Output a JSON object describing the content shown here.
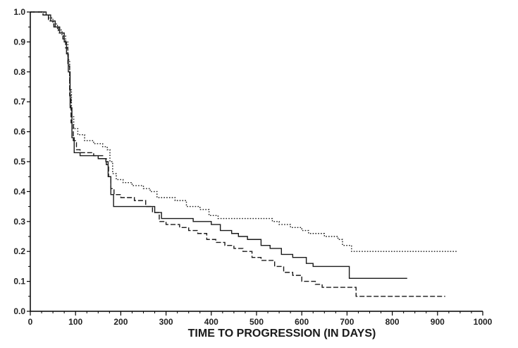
{
  "chart_data": {
    "type": "line",
    "drawstyle": "steps",
    "xlabel": "TIME TO PROGRESSION (IN DAYS)",
    "xlim": [
      0,
      1000
    ],
    "ylim": [
      0,
      1.0
    ],
    "xticks": [
      0,
      100,
      200,
      300,
      400,
      500,
      600,
      700,
      800,
      900,
      1000
    ],
    "xtick_labels": [
      "0",
      "100",
      "200",
      "300",
      "400",
      "500",
      "600",
      "700",
      "800",
      "900",
      "1000"
    ],
    "yticks": [
      0,
      0.1,
      0.2,
      0.3,
      0.4,
      0.5,
      0.6,
      0.7,
      0.8,
      0.9,
      1.0
    ],
    "ytick_labels": [
      "0.0",
      "0.1",
      "0.2",
      "0.3",
      "0.4",
      "0.5",
      "0.6",
      "0.7",
      "0.8",
      "0.9",
      "1.0"
    ],
    "grid": false,
    "legend": "none",
    "series": [
      {
        "line_style": "dotted",
        "x": [
          0,
          20,
          30,
          40,
          50,
          60,
          70,
          78,
          83,
          87,
          91,
          96,
          105,
          120,
          140,
          160,
          170,
          176,
          182,
          190,
          205,
          225,
          250,
          265,
          280,
          320,
          345,
          375,
          395,
          415,
          520,
          535,
          550,
          575,
          600,
          615,
          650,
          680,
          690,
          710,
          942
        ],
        "y": [
          1.0,
          1.0,
          0.99,
          0.98,
          0.96,
          0.94,
          0.92,
          0.9,
          0.84,
          0.74,
          0.65,
          0.61,
          0.59,
          0.57,
          0.56,
          0.55,
          0.54,
          0.5,
          0.46,
          0.44,
          0.43,
          0.42,
          0.41,
          0.4,
          0.38,
          0.37,
          0.35,
          0.34,
          0.32,
          0.31,
          0.31,
          0.3,
          0.29,
          0.28,
          0.27,
          0.26,
          0.25,
          0.24,
          0.22,
          0.2,
          0.2
        ]
      },
      {
        "line_style": "solid",
        "x": [
          0,
          25,
          35,
          45,
          55,
          65,
          75,
          80,
          84,
          88,
          92,
          97,
          110,
          150,
          167,
          172,
          178,
          184,
          265,
          275,
          290,
          330,
          360,
          400,
          420,
          445,
          460,
          480,
          510,
          530,
          555,
          580,
          610,
          625,
          700,
          705,
          833
        ],
        "y": [
          1.0,
          1.0,
          0.99,
          0.97,
          0.95,
          0.93,
          0.9,
          0.86,
          0.8,
          0.68,
          0.58,
          0.53,
          0.52,
          0.51,
          0.5,
          0.45,
          0.39,
          0.35,
          0.35,
          0.33,
          0.31,
          0.31,
          0.3,
          0.29,
          0.27,
          0.26,
          0.25,
          0.24,
          0.22,
          0.21,
          0.19,
          0.18,
          0.16,
          0.15,
          0.15,
          0.11,
          0.11
        ]
      },
      {
        "line_style": "dashed",
        "x": [
          0,
          18,
          28,
          40,
          52,
          62,
          72,
          78,
          83,
          87,
          90,
          95,
          102,
          110,
          140,
          160,
          168,
          173,
          178,
          185,
          200,
          230,
          255,
          270,
          285,
          300,
          330,
          350,
          370,
          390,
          410,
          430,
          450,
          470,
          490,
          510,
          540,
          560,
          580,
          600,
          630,
          645,
          700,
          720,
          917
        ],
        "y": [
          1.0,
          1.0,
          0.99,
          0.97,
          0.95,
          0.93,
          0.91,
          0.88,
          0.82,
          0.72,
          0.63,
          0.57,
          0.54,
          0.53,
          0.52,
          0.51,
          0.49,
          0.45,
          0.41,
          0.39,
          0.38,
          0.37,
          0.35,
          0.33,
          0.3,
          0.29,
          0.28,
          0.27,
          0.26,
          0.24,
          0.23,
          0.22,
          0.21,
          0.2,
          0.18,
          0.17,
          0.15,
          0.13,
          0.12,
          0.1,
          0.09,
          0.08,
          0.08,
          0.05,
          0.05
        ]
      }
    ]
  },
  "colors": {
    "background": "#ffffff",
    "axis": "#000000",
    "series_line": "#1a1a1a"
  }
}
